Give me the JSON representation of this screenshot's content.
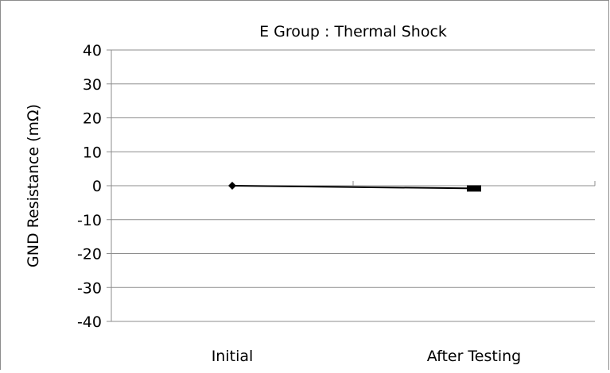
{
  "chart_data": {
    "type": "line",
    "title": "E Group : Thermal Shock",
    "xlabel": "",
    "ylabel": "GND Resistance (mΩ)",
    "categories": [
      "Initial",
      "After Testing"
    ],
    "ylim": [
      -40,
      40
    ],
    "yticks": [
      40,
      30,
      20,
      10,
      0,
      -10,
      -20,
      -30,
      -40
    ],
    "grid": true,
    "legend": "none",
    "series": [
      {
        "values": [
          0,
          -0.8
        ],
        "color": "#000000"
      }
    ]
  }
}
